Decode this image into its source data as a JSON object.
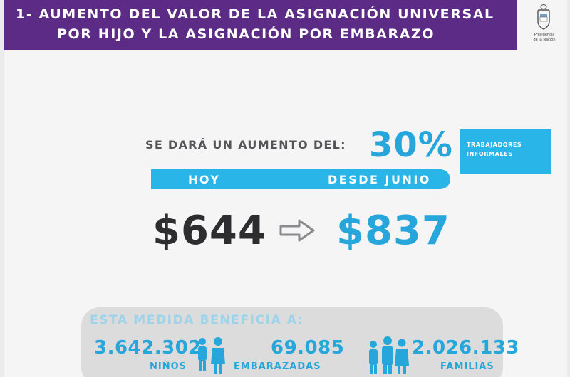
{
  "header": {
    "title_line1": "1- AUMENTO DEL VALOR DE LA ASIGNACIÓN UNIVERSAL",
    "title_line2": "POR HIJO Y LA ASIGNACIÓN POR EMBARAZO",
    "seal_text_line1": "Presidencia",
    "seal_text_line2": "de la Nación"
  },
  "increase": {
    "label": "SE DARÁ UN AUMENTO DEL:",
    "percent": "30%",
    "badge_line1": "TRABAJADORES",
    "badge_line2": "INFORMALES"
  },
  "periods": {
    "today_label": "HOY",
    "june_label": "DESDE JUNIO"
  },
  "amounts": {
    "today": "$644",
    "june": "$837"
  },
  "benefits": {
    "title": "ESTA MEDIDA BENEFICIA A:",
    "stats": [
      {
        "value": "3.642.302",
        "label": "NIÑOS"
      },
      {
        "value": "69.085",
        "label": "EMBARAZADAS"
      },
      {
        "value": "2.026.133",
        "label": "FAMILIAS"
      }
    ]
  },
  "colors": {
    "purple": "#5b2b86",
    "blue": "#26a6da",
    "dark": "#2d2d30"
  },
  "icons": [
    "seal-icon",
    "right-arrow-icon",
    "child-icon",
    "family-icon"
  ]
}
